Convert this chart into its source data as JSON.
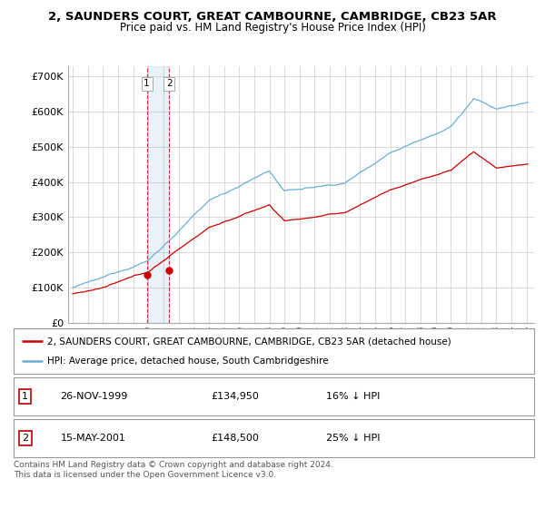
{
  "title": "2, SAUNDERS COURT, GREAT CAMBOURNE, CAMBRIDGE, CB23 5AR",
  "subtitle": "Price paid vs. HM Land Registry's House Price Index (HPI)",
  "hpi_color": "#6aaed6",
  "price_color": "#cc0000",
  "sale1_x": 1999.9,
  "sale1_y": 134950,
  "sale2_x": 2001.37,
  "sale2_y": 148500,
  "sale1_label": "26-NOV-1999",
  "sale1_price": "£134,950",
  "sale1_hpi": "16% ↓ HPI",
  "sale2_label": "15-MAY-2001",
  "sale2_price": "£148,500",
  "sale2_hpi": "25% ↓ HPI",
  "legend_property": "2, SAUNDERS COURT, GREAT CAMBOURNE, CAMBRIDGE, CB23 5AR (detached house)",
  "legend_hpi": "HPI: Average price, detached house, South Cambridgeshire",
  "footnote": "Contains HM Land Registry data © Crown copyright and database right 2024.\nThis data is licensed under the Open Government Licence v3.0.",
  "background_color": "#ffffff",
  "grid_color": "#cccccc",
  "yticks": [
    0,
    100000,
    200000,
    300000,
    400000,
    500000,
    600000,
    700000
  ],
  "ytick_labels": [
    "£0",
    "£100K",
    "£200K",
    "£300K",
    "£400K",
    "£500K",
    "£600K",
    "£700K"
  ],
  "ylim": [
    0,
    730000
  ],
  "xlim_start": 1994.7,
  "xlim_end": 2025.5
}
